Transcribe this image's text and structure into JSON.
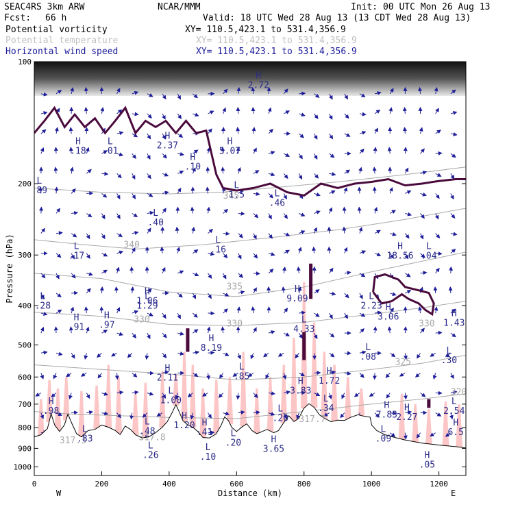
{
  "header": {
    "model": "SEAC4RS  3km ARW",
    "org": "NCAR/MMM",
    "init": "Init: 00 UTC Mon 26 Aug 13",
    "fcst_label": "Fcst:",
    "fcst_value": "66 h",
    "valid": "Valid: 18 UTC Wed 28 Aug 13 (13 CDT Wed 28 Aug 13)"
  },
  "fields": [
    {
      "name": "Potential vorticity",
      "xy": "XY= 110.5,423.1 to 531.4,356.9",
      "color": "#000000"
    },
    {
      "name": "Potential temperature",
      "xy": "XY= 110.5,423.1 to 531.4,356.9",
      "color": "#c0c0c0"
    },
    {
      "name": "Horizontal wind speed",
      "xy": "XY= 110.5,423.1 to 531.4,356.9",
      "color": "#1a1a9a"
    }
  ],
  "colors": {
    "pv_contour": "#4a0a3c",
    "theta_contour": "#a8a8a8",
    "wind_arrow": "#1e1e9a",
    "shading_pink": "#fdc6c6",
    "terrain": "#000000"
  },
  "chart_data": {
    "type": "vertical cross-section",
    "xlabel": "Distance (km)",
    "ylabel": "Pressure (hPa)",
    "xlim": [
      0,
      1280
    ],
    "ylim": [
      1050,
      100
    ],
    "x_ticks": [
      0,
      200,
      400,
      600,
      800,
      1000,
      1200
    ],
    "y_ticks": [
      100,
      200,
      300,
      400,
      500,
      600,
      700,
      800,
      900,
      1000
    ],
    "y_scale": "log",
    "end_labels": {
      "left": "W",
      "right": "E"
    },
    "terrain_profile": [
      [
        0,
        845
      ],
      [
        20,
        835
      ],
      [
        40,
        805
      ],
      [
        50,
        745
      ],
      [
        60,
        790
      ],
      [
        75,
        820
      ],
      [
        90,
        790
      ],
      [
        100,
        745
      ],
      [
        110,
        780
      ],
      [
        125,
        830
      ],
      [
        140,
        845
      ],
      [
        160,
        815
      ],
      [
        180,
        810
      ],
      [
        200,
        790
      ],
      [
        220,
        800
      ],
      [
        240,
        815
      ],
      [
        255,
        835
      ],
      [
        270,
        795
      ],
      [
        285,
        810
      ],
      [
        300,
        835
      ],
      [
        320,
        850
      ],
      [
        340,
        845
      ],
      [
        360,
        825
      ],
      [
        380,
        800
      ],
      [
        395,
        775
      ],
      [
        410,
        735
      ],
      [
        420,
        705
      ],
      [
        430,
        735
      ],
      [
        440,
        770
      ],
      [
        455,
        790
      ],
      [
        470,
        800
      ],
      [
        485,
        820
      ],
      [
        500,
        848
      ],
      [
        520,
        850
      ],
      [
        540,
        830
      ],
      [
        555,
        790
      ],
      [
        565,
        755
      ],
      [
        575,
        770
      ],
      [
        585,
        800
      ],
      [
        600,
        820
      ],
      [
        615,
        800
      ],
      [
        630,
        785
      ],
      [
        645,
        815
      ],
      [
        660,
        830
      ],
      [
        675,
        820
      ],
      [
        690,
        810
      ],
      [
        710,
        825
      ],
      [
        725,
        815
      ],
      [
        740,
        780
      ],
      [
        755,
        750
      ],
      [
        770,
        775
      ],
      [
        785,
        760
      ],
      [
        800,
        718
      ],
      [
        815,
        700
      ],
      [
        830,
        715
      ],
      [
        845,
        745
      ],
      [
        860,
        760
      ],
      [
        880,
        775
      ],
      [
        900,
        768
      ],
      [
        920,
        770
      ],
      [
        940,
        755
      ],
      [
        960,
        745
      ],
      [
        980,
        752
      ],
      [
        995,
        755
      ],
      [
        1000,
        790
      ],
      [
        1015,
        815
      ],
      [
        1040,
        835
      ],
      [
        1070,
        848
      ],
      [
        1100,
        860
      ],
      [
        1150,
        875
      ],
      [
        1200,
        885
      ],
      [
        1250,
        893
      ],
      [
        1280,
        900
      ]
    ],
    "theta_contours": [
      {
        "label": "340",
        "points": [
          [
            0,
            275
          ],
          [
            150,
            283
          ],
          [
            300,
            290
          ],
          [
            500,
            283
          ],
          [
            700,
            272
          ],
          [
            900,
            260
          ],
          [
            1100,
            245
          ],
          [
            1280,
            230
          ]
        ]
      },
      {
        "label": "335",
        "points": [
          [
            0,
            333
          ],
          [
            200,
            343
          ],
          [
            400,
            370
          ],
          [
            600,
            380
          ],
          [
            800,
            360
          ],
          [
            1000,
            330
          ],
          [
            1280,
            295
          ]
        ]
      },
      {
        "label": "330",
        "points": [
          [
            0,
            415
          ],
          [
            200,
            425
          ],
          [
            400,
            445
          ],
          [
            600,
            448
          ],
          [
            800,
            440
          ],
          [
            1000,
            420
          ],
          [
            1150,
            405
          ],
          [
            1280,
            390
          ]
        ]
      },
      {
        "label": "325",
        "points": [
          [
            0,
            560
          ],
          [
            200,
            575
          ],
          [
            400,
            590
          ],
          [
            600,
            610
          ],
          [
            800,
            600
          ],
          [
            1000,
            575
          ],
          [
            1150,
            555
          ],
          [
            1280,
            530
          ]
        ]
      },
      {
        "label": "320",
        "points": [
          [
            0,
            730
          ],
          [
            100,
            740
          ],
          [
            200,
            745
          ],
          [
            400,
            755
          ],
          [
            600,
            760
          ],
          [
            800,
            730
          ],
          [
            1000,
            700
          ],
          [
            1150,
            680
          ],
          [
            1280,
            660
          ]
        ]
      },
      {
        "label": "345",
        "points": [
          [
            0,
            205
          ],
          [
            200,
            210
          ],
          [
            400,
            212
          ],
          [
            550,
            210
          ],
          [
            700,
            205
          ],
          [
            900,
            198
          ],
          [
            1100,
            190
          ],
          [
            1280,
            182
          ]
        ]
      }
    ],
    "pv_tropopause": [
      [
        0,
        150
      ],
      [
        30,
        140
      ],
      [
        60,
        130
      ],
      [
        90,
        145
      ],
      [
        120,
        135
      ],
      [
        150,
        145
      ],
      [
        180,
        138
      ],
      [
        210,
        150
      ],
      [
        240,
        140
      ],
      [
        270,
        130
      ],
      [
        300,
        150
      ],
      [
        330,
        140
      ],
      [
        360,
        145
      ],
      [
        390,
        140
      ],
      [
        420,
        150
      ],
      [
        450,
        140
      ],
      [
        480,
        150
      ],
      [
        510,
        148
      ],
      [
        540,
        190
      ],
      [
        560,
        205
      ],
      [
        600,
        208
      ],
      [
        650,
        205
      ],
      [
        700,
        200
      ],
      [
        750,
        210
      ],
      [
        800,
        214
      ],
      [
        850,
        200
      ],
      [
        900,
        205
      ],
      [
        950,
        200
      ],
      [
        1000,
        198
      ],
      [
        1050,
        195
      ],
      [
        1100,
        202
      ],
      [
        1150,
        200
      ],
      [
        1200,
        197
      ],
      [
        1250,
        195
      ],
      [
        1280,
        195
      ]
    ],
    "pv_blob": [
      [
        1005,
        370
      ],
      [
        1010,
        340
      ],
      [
        1040,
        335
      ],
      [
        1080,
        345
      ],
      [
        1100,
        360
      ],
      [
        1130,
        365
      ],
      [
        1170,
        372
      ],
      [
        1185,
        395
      ],
      [
        1180,
        420
      ],
      [
        1160,
        410
      ],
      [
        1140,
        395
      ],
      [
        1110,
        385
      ],
      [
        1090,
        375
      ],
      [
        1060,
        390
      ],
      [
        1030,
        395
      ],
      [
        1005,
        370
      ]
    ],
    "pv_columns": [
      {
        "x": 455,
        "p_top": 455,
        "p_bot": 520
      },
      {
        "x": 820,
        "p_top": 315,
        "p_bot": 385
      },
      {
        "x": 800,
        "p_top": 465,
        "p_bot": 545
      },
      {
        "x": 1170,
        "p_top": 680,
        "p_bot": 715
      }
    ],
    "annotations": [
      {
        "type": "L",
        "value": ".01",
        "x": 225,
        "p": 160
      },
      {
        "type": "H",
        "value": ".18",
        "x": 130,
        "p": 160
      },
      {
        "type": "H",
        "value": "2.37",
        "x": 395,
        "p": 155
      },
      {
        "type": "H",
        "value": "5.07",
        "x": 580,
        "p": 160
      },
      {
        "type": "H",
        "value": "2.72",
        "x": 665,
        "p": 110
      },
      {
        "type": "L",
        "value": ".89",
        "x": 15,
        "p": 200
      },
      {
        "type": "H",
        "value": ".10",
        "x": 470,
        "p": 175
      },
      {
        "type": "L",
        "value": "1.5",
        "x": 600,
        "p": 205
      },
      {
        "type": "L",
        "value": ".46",
        "x": 720,
        "p": 215
      },
      {
        "type": "L",
        "value": ".40",
        "x": 360,
        "p": 240
      },
      {
        "type": "L",
        "value": ".16",
        "x": 545,
        "p": 280
      },
      {
        "type": "L",
        "value": ".17",
        "x": 125,
        "p": 290
      },
      {
        "type": "H",
        "value": "18.56",
        "x": 1085,
        "p": 290
      },
      {
        "type": "L",
        "value": ".04",
        "x": 1170,
        "p": 290
      },
      {
        "type": "H",
        "value": "1.06",
        "x": 335,
        "p": 375
      },
      {
        "type": "L",
        "value": "1.29",
        "x": 335,
        "p": 385
      },
      {
        "type": "L",
        "value": ".28",
        "x": 25,
        "p": 385
      },
      {
        "type": "H",
        "value": "9.09",
        "x": 780,
        "p": 370
      },
      {
        "type": "L",
        "value": "2.23",
        "x": 1000,
        "p": 385
      },
      {
        "type": "H",
        "value": "3.06",
        "x": 1050,
        "p": 410
      },
      {
        "type": "H",
        "value": ".91",
        "x": 125,
        "p": 435
      },
      {
        "type": "H",
        "value": ".97",
        "x": 215,
        "p": 430
      },
      {
        "type": "L",
        "value": "4.33",
        "x": 800,
        "p": 440
      },
      {
        "type": "H",
        "value": "8.19",
        "x": 525,
        "p": 490
      },
      {
        "type": "H",
        "value": "1.43",
        "x": 1245,
        "p": 425
      },
      {
        "type": "L",
        "value": ".08",
        "x": 990,
        "p": 515
      },
      {
        "type": "L",
        "value": ".30",
        "x": 1230,
        "p": 525
      },
      {
        "type": "H",
        "value": "2.11",
        "x": 395,
        "p": 580
      },
      {
        "type": "L",
        "value": ".85",
        "x": 615,
        "p": 575
      },
      {
        "type": "H",
        "value": "1.72",
        "x": 875,
        "p": 590
      },
      {
        "type": "H",
        "value": "3.83",
        "x": 790,
        "p": 625
      },
      {
        "type": "L",
        "value": "1.00",
        "x": 405,
        "p": 660
      },
      {
        "type": "H",
        "value": ".98",
        "x": 50,
        "p": 700
      },
      {
        "type": "L",
        "value": ".34",
        "x": 865,
        "p": 690
      },
      {
        "type": "H",
        "value": "7.83",
        "x": 1045,
        "p": 715
      },
      {
        "type": "H",
        "value": "2.27",
        "x": 1105,
        "p": 725
      },
      {
        "type": "L",
        "value": "2.54",
        "x": 1245,
        "p": 700
      },
      {
        "type": "L",
        "value": ".20",
        "x": 730,
        "p": 730
      },
      {
        "type": "H",
        "value": "1.20",
        "x": 445,
        "p": 760
      },
      {
        "type": "L",
        "value": ".48",
        "x": 335,
        "p": 785
      },
      {
        "type": "H",
        "value": ".41",
        "x": 505,
        "p": 790
      },
      {
        "type": "L",
        "value": ".83",
        "x": 150,
        "p": 820
      },
      {
        "type": "L",
        "value": ".09",
        "x": 1035,
        "p": 820
      },
      {
        "type": "H",
        "value": "6.5",
        "x": 1250,
        "p": 790
      },
      {
        "type": "L",
        "value": ".20",
        "x": 590,
        "p": 840
      },
      {
        "type": "H",
        "value": "3.65",
        "x": 710,
        "p": 870
      },
      {
        "type": "L",
        "value": ".26",
        "x": 345,
        "p": 900
      },
      {
        "type": "L",
        "value": ".10",
        "x": 515,
        "p": 910
      },
      {
        "type": "H",
        "value": ".05",
        "x": 1165,
        "p": 950
      }
    ],
    "theta_labels": [
      {
        "value": "340",
        "x": 265,
        "p": 288
      },
      {
        "value": "335",
        "x": 570,
        "p": 365
      },
      {
        "value": "330",
        "x": 295,
        "p": 440
      },
      {
        "value": "330",
        "x": 570,
        "p": 450
      },
      {
        "value": "330",
        "x": 1140,
        "p": 450
      },
      {
        "value": "325",
        "x": 1070,
        "p": 560
      },
      {
        "value": "320",
        "x": 1235,
        "p": 665
      },
      {
        "value": "345",
        "x": 560,
        "p": 218
      },
      {
        "value": "317.3",
        "x": 75,
        "p": 875
      },
      {
        "value": "317.8",
        "x": 310,
        "p": 860
      },
      {
        "value": "317.7",
        "x": 785,
        "p": 775
      }
    ]
  }
}
